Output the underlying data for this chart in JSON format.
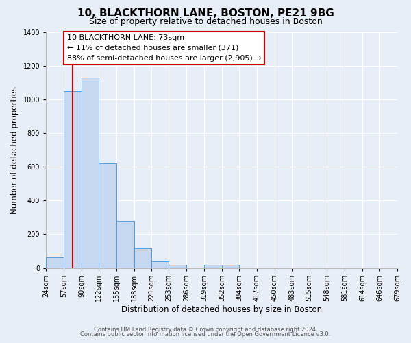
{
  "title": "10, BLACKTHORN LANE, BOSTON, PE21 9BG",
  "subtitle": "Size of property relative to detached houses in Boston",
  "xlabel": "Distribution of detached houses by size in Boston",
  "ylabel": "Number of detached properties",
  "bin_labels": [
    "24sqm",
    "57sqm",
    "90sqm",
    "122sqm",
    "155sqm",
    "188sqm",
    "221sqm",
    "253sqm",
    "286sqm",
    "319sqm",
    "352sqm",
    "384sqm",
    "417sqm",
    "450sqm",
    "483sqm",
    "515sqm",
    "548sqm",
    "581sqm",
    "614sqm",
    "646sqm",
    "679sqm"
  ],
  "bar_values": [
    65,
    1050,
    1130,
    620,
    280,
    118,
    40,
    18,
    0,
    20,
    20,
    0,
    0,
    0,
    0,
    0,
    0,
    0,
    0,
    0
  ],
  "bar_color": "#c5d8f0",
  "bar_edge_color": "#5b9bd5",
  "vline_x": 73,
  "vline_color": "#cc0000",
  "annotation_line1": "10 BLACKTHORN LANE: 73sqm",
  "annotation_line2": "← 11% of detached houses are smaller (371)",
  "annotation_line3": "88% of semi-detached houses are larger (2,905) →",
  "annotation_box_facecolor": "#ffffff",
  "annotation_box_edgecolor": "#cc0000",
  "ylim": [
    0,
    1400
  ],
  "yticks": [
    0,
    200,
    400,
    600,
    800,
    1000,
    1200,
    1400
  ],
  "footer1": "Contains HM Land Registry data © Crown copyright and database right 2024.",
  "footer2": "Contains public sector information licensed under the Open Government Licence v3.0.",
  "bg_color": "#e8eef8",
  "plot_bg_color": "#e8eef8",
  "grid_color": "#ffffff",
  "title_fontsize": 11,
  "subtitle_fontsize": 9,
  "axis_label_fontsize": 8.5,
  "tick_fontsize": 7,
  "annotation_fontsize": 8,
  "footer_fontsize": 6
}
